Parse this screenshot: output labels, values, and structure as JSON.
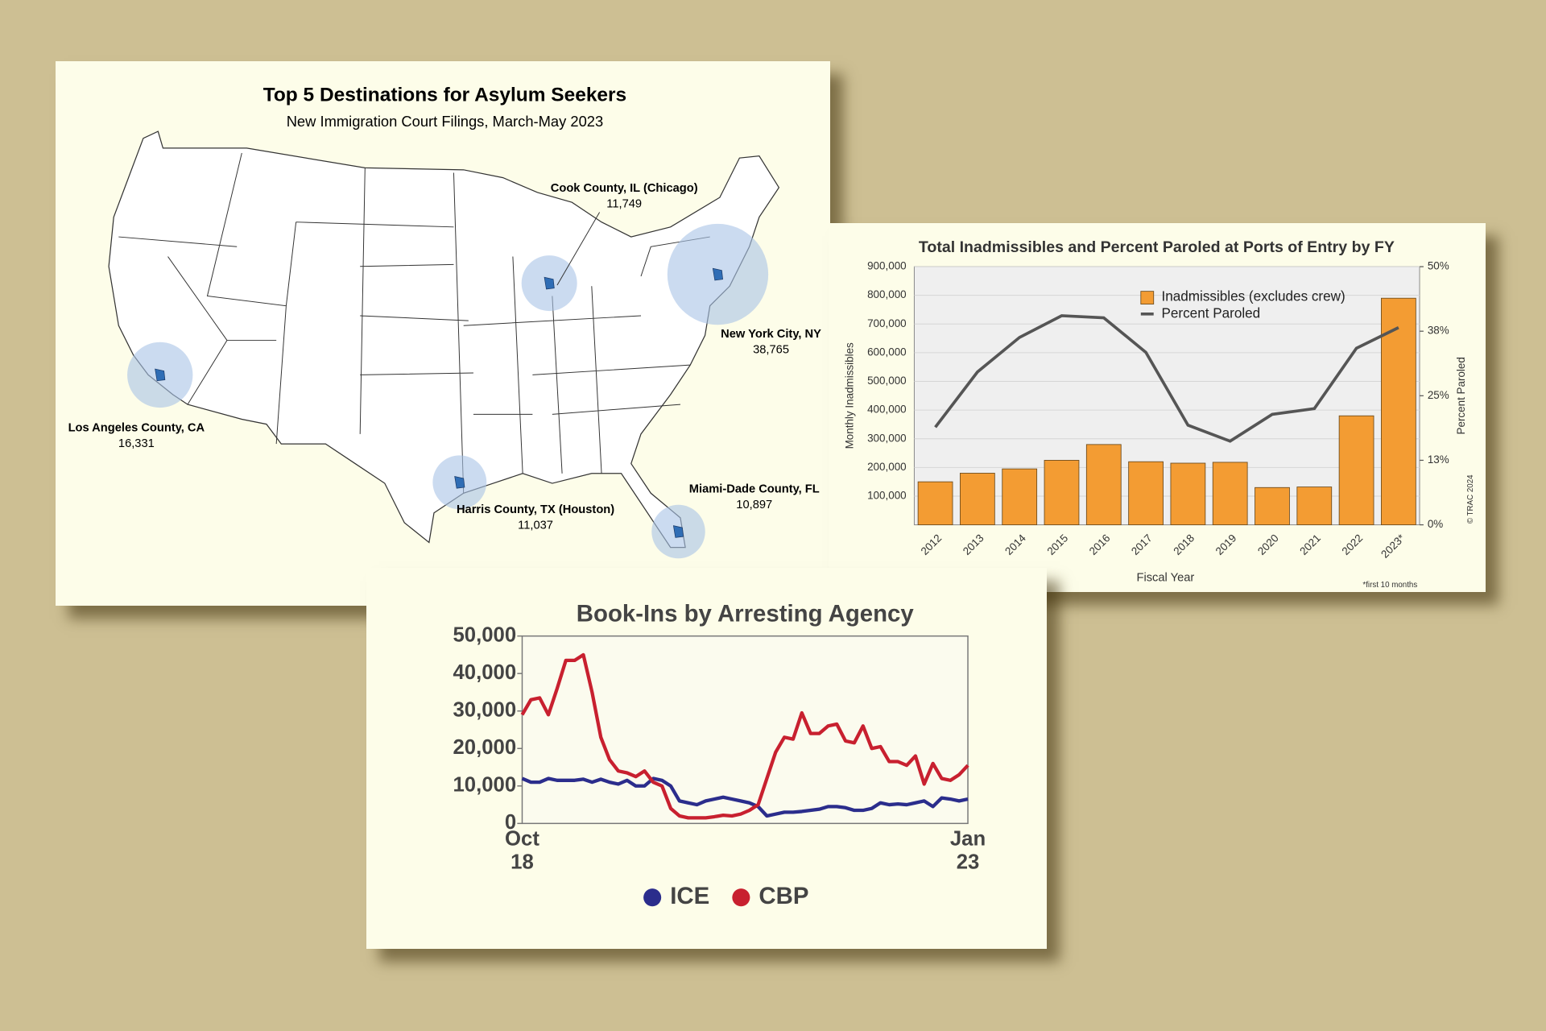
{
  "chart_data": [
    {
      "type": "map",
      "title": "Top 5 Destinations for Asylum Seekers",
      "subtitle": "New Immigration Court Filings, March-May 2023",
      "color": "#a9c3e6",
      "points": [
        {
          "name": "Cook County, IL (Chicago)",
          "value": 11749,
          "value_label": "11,749"
        },
        {
          "name": "New York City, NY",
          "value": 38765,
          "value_label": "38,765"
        },
        {
          "name": "Los Angeles County, CA",
          "value": 16331,
          "value_label": "16,331"
        },
        {
          "name": "Harris County, TX (Houston)",
          "value": 11037,
          "value_label": "11,037"
        },
        {
          "name": "Miami-Dade County, FL",
          "value": 10897,
          "value_label": "10,897"
        }
      ]
    },
    {
      "type": "bar",
      "title": "Total Inadmissibles and Percent Paroled at Ports of Entry by FY",
      "x_label": "Fiscal Year",
      "y_label": "Monthly Inadmissibles",
      "y2_label": "Percent Paroled",
      "note": "*first 10 months",
      "credit": "© TRAC 2024",
      "categories": [
        "2012",
        "2013",
        "2014",
        "2015",
        "2016",
        "2017",
        "2018",
        "2019",
        "2020",
        "2021",
        "2022",
        "2023*"
      ],
      "series": [
        {
          "name": "Inadmissibles (excludes crew)",
          "color": "#f39c33",
          "values": [
            150000,
            180000,
            195000,
            225000,
            280000,
            220000,
            215000,
            218000,
            130000,
            132000,
            380000,
            790000
          ]
        },
        {
          "name": "Percent Paroled",
          "color": "#555555",
          "type": "line",
          "axis": "y2",
          "values": [
            18.9,
            29.6,
            36.3,
            40.5,
            40.1,
            33.4,
            19.3,
            16.2,
            21.4,
            22.5,
            34.2,
            38.2
          ]
        }
      ],
      "ylim": [
        0,
        900000
      ],
      "yticks": [
        {
          "value": 100000,
          "label": "100,000"
        },
        {
          "value": 200000,
          "label": "200,000"
        },
        {
          "value": 300000,
          "label": "300,000"
        },
        {
          "value": 400000,
          "label": "400,000"
        },
        {
          "value": 500000,
          "label": "500,000"
        },
        {
          "value": 600000,
          "label": "600,000"
        },
        {
          "value": 700000,
          "label": "700,000"
        },
        {
          "value": 800000,
          "label": "800,000"
        },
        {
          "value": 900000,
          "label": "900,000"
        }
      ],
      "y2lim": [
        0,
        50
      ],
      "y2ticks": [
        {
          "value": 0,
          "label": "0%"
        },
        {
          "value": 12.5,
          "label": "13%"
        },
        {
          "value": 25,
          "label": "25%"
        },
        {
          "value": 37.5,
          "label": "38%"
        },
        {
          "value": 50,
          "label": "50%"
        }
      ],
      "grid": true,
      "legend": "top-right"
    },
    {
      "type": "line",
      "title": "Book-Ins by Arresting Agency",
      "categories": [
        "Oct\n18",
        null,
        null,
        null,
        null,
        null,
        null,
        null,
        null,
        null,
        null,
        null,
        null,
        null,
        null,
        null,
        null,
        null,
        null,
        null,
        null,
        null,
        null,
        null,
        null,
        null,
        null,
        null,
        null,
        null,
        null,
        null,
        null,
        null,
        null,
        null,
        null,
        null,
        null,
        null,
        null,
        null,
        null,
        null,
        null,
        null,
        null,
        null,
        null,
        null,
        null,
        "Jan\n23"
      ],
      "series": [
        {
          "name": "ICE",
          "color": "#2b2d8c",
          "values": [
            12000,
            11000,
            11000,
            12000,
            11500,
            11500,
            11500,
            11800,
            11000,
            11800,
            11000,
            10500,
            11500,
            10000,
            10000,
            12000,
            11500,
            10000,
            6000,
            5500,
            5000,
            6000,
            6500,
            7000,
            6500,
            6000,
            5500,
            4500,
            2000,
            2500,
            3000,
            3000,
            3200,
            3500,
            3800,
            4500,
            4500,
            4200,
            3500,
            3500,
            4000,
            5500,
            5000,
            5200,
            5000,
            5500,
            6000,
            4500,
            6800,
            6500,
            6000,
            6500
          ]
        },
        {
          "name": "CBP",
          "color": "#c8202f",
          "values": [
            29000,
            33000,
            33500,
            29000,
            36000,
            43500,
            43500,
            45000,
            35000,
            23000,
            17000,
            14000,
            13500,
            12500,
            14000,
            11000,
            10000,
            4000,
            2000,
            1500,
            1500,
            1500,
            1800,
            2200,
            2000,
            2500,
            3500,
            5000,
            12000,
            19000,
            23000,
            22500,
            29500,
            24000,
            24000,
            26000,
            26500,
            22000,
            21500,
            26000,
            20000,
            20500,
            16500,
            16500,
            15500,
            18000,
            10500,
            16000,
            12000,
            11500,
            13000,
            15500
          ]
        }
      ],
      "ylim": [
        0,
        50000
      ],
      "yticks": [
        0,
        {
          "value": 10000,
          "label": "10,000"
        },
        {
          "value": 20000,
          "label": "20,000"
        },
        {
          "value": 30000,
          "label": "30,000"
        },
        {
          "value": 40000,
          "label": "40,000"
        },
        {
          "value": 50000,
          "label": "50,000"
        }
      ],
      "legend": "bottom"
    }
  ]
}
